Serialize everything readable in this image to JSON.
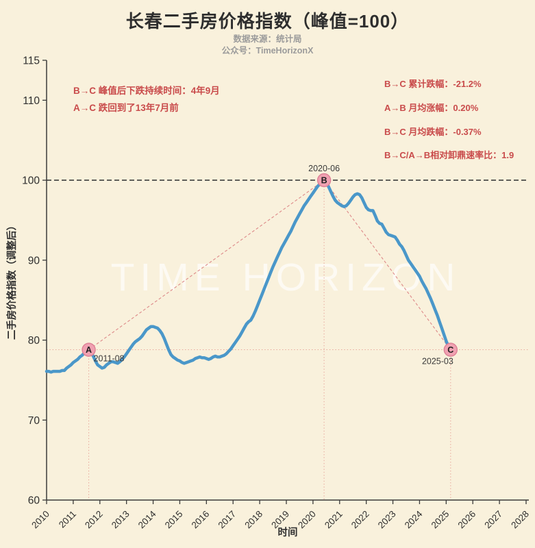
{
  "header": {
    "title": "长春二手房价格指数（峰值=100）",
    "subtitle_line1": "数据来源：统计局",
    "subtitle_line2": "公众号：TimeHorizonX"
  },
  "annotations": {
    "left_lines": [
      "B→C 峰值后下跌持续时间：4年9月",
      "A→C 跌回到了13年7月前"
    ],
    "right_lines": [
      "B→C 累计跌幅：-21.2%",
      "A→B 月均涨幅：0.20%",
      "B→C 月均跌幅：-0.37%",
      "B→C/A→B相对卸鼎速率比：1.9"
    ]
  },
  "watermark": "TIME HORIZON",
  "colors": {
    "background": "#f9f1dc",
    "curve_blue": "#4a97c9",
    "marker_fill": "#f0a1b1",
    "marker_edge": "#dd7f95",
    "annotation_red": "#c94b4b",
    "guide_dotted_pink": "#e8a79b",
    "trend_dashed_pink": "#dd8888",
    "reference_dashed_dark": "#3d3d3d",
    "axis_text": "#2f2f2f",
    "subtitle_gray": "#9b9b9b",
    "watermark_fill": "rgba(255,255,255,0.65)"
  },
  "chart_data": {
    "type": "line",
    "title": "长春二手房价格指数（峰值=100）",
    "xlabel": "时间",
    "ylabel": "二手房价格指数（调整后）",
    "ylim": [
      60,
      115
    ],
    "xlim": [
      2010,
      2028
    ],
    "yticks": [
      60,
      70,
      80,
      90,
      100,
      110,
      115
    ],
    "xticks": [
      2010,
      2011,
      2012,
      2013,
      2014,
      2015,
      2016,
      2017,
      2018,
      2019,
      2020,
      2021,
      2022,
      2023,
      2024,
      2025,
      2026,
      2027,
      2028
    ],
    "grid": false,
    "legend": "none",
    "start_month": "2010-01",
    "frequency": "monthly",
    "values": [
      76.1,
      76.1,
      76.0,
      76.1,
      76.1,
      76.1,
      76.1,
      76.2,
      76.2,
      76.5,
      76.7,
      76.9,
      77.2,
      77.4,
      77.6,
      77.9,
      78.1,
      78.4,
      78.6,
      78.8,
      78.5,
      78.0,
      77.4,
      76.9,
      76.7,
      76.5,
      76.6,
      76.9,
      77.1,
      77.3,
      77.3,
      77.2,
      77.1,
      77.3,
      77.6,
      77.9,
      78.3,
      78.7,
      79.1,
      79.5,
      79.8,
      80.0,
      80.2,
      80.5,
      80.9,
      81.3,
      81.5,
      81.7,
      81.7,
      81.6,
      81.5,
      81.2,
      80.8,
      80.2,
      79.5,
      78.8,
      78.2,
      77.9,
      77.7,
      77.5,
      77.4,
      77.2,
      77.1,
      77.2,
      77.3,
      77.4,
      77.5,
      77.7,
      77.8,
      77.9,
      77.8,
      77.8,
      77.7,
      77.6,
      77.7,
      77.9,
      78.0,
      77.9,
      77.9,
      78.0,
      78.1,
      78.3,
      78.6,
      78.9,
      79.3,
      79.7,
      80.1,
      80.5,
      81.0,
      81.5,
      82.0,
      82.3,
      82.5,
      83.0,
      83.6,
      84.3,
      85.0,
      85.7,
      86.4,
      87.1,
      87.8,
      88.5,
      89.2,
      89.8,
      90.4,
      91.0,
      91.6,
      92.1,
      92.6,
      93.1,
      93.6,
      94.2,
      94.8,
      95.3,
      95.8,
      96.3,
      96.8,
      97.2,
      97.6,
      98.0,
      98.4,
      98.8,
      99.2,
      99.5,
      99.8,
      100.0,
      99.7,
      99.2,
      98.6,
      98.0,
      97.5,
      97.2,
      97.0,
      96.8,
      96.7,
      96.8,
      97.1,
      97.5,
      97.9,
      98.2,
      98.3,
      98.2,
      97.8,
      97.2,
      96.6,
      96.3,
      96.2,
      96.2,
      95.6,
      94.9,
      94.6,
      94.5,
      94.0,
      93.5,
      93.2,
      93.1,
      93.0,
      92.9,
      92.5,
      92.0,
      91.7,
      91.2,
      90.6,
      90.0,
      89.6,
      89.2,
      88.8,
      88.4,
      88.0,
      87.4,
      86.9,
      86.4,
      85.8,
      85.2,
      84.5,
      83.8,
      83.1,
      82.3,
      81.5,
      80.7,
      79.9,
      79.2,
      78.8
    ],
    "points": [
      {
        "id": "A",
        "date": "2011-08",
        "value": 78.8
      },
      {
        "id": "B",
        "date": "2020-06",
        "value": 100.0
      },
      {
        "id": "C",
        "date": "2025-03",
        "value": 78.8
      }
    ],
    "reference_lines": {
      "horizontal_dashed_at": 100,
      "horizontal_dotted_at": 78.8
    }
  }
}
